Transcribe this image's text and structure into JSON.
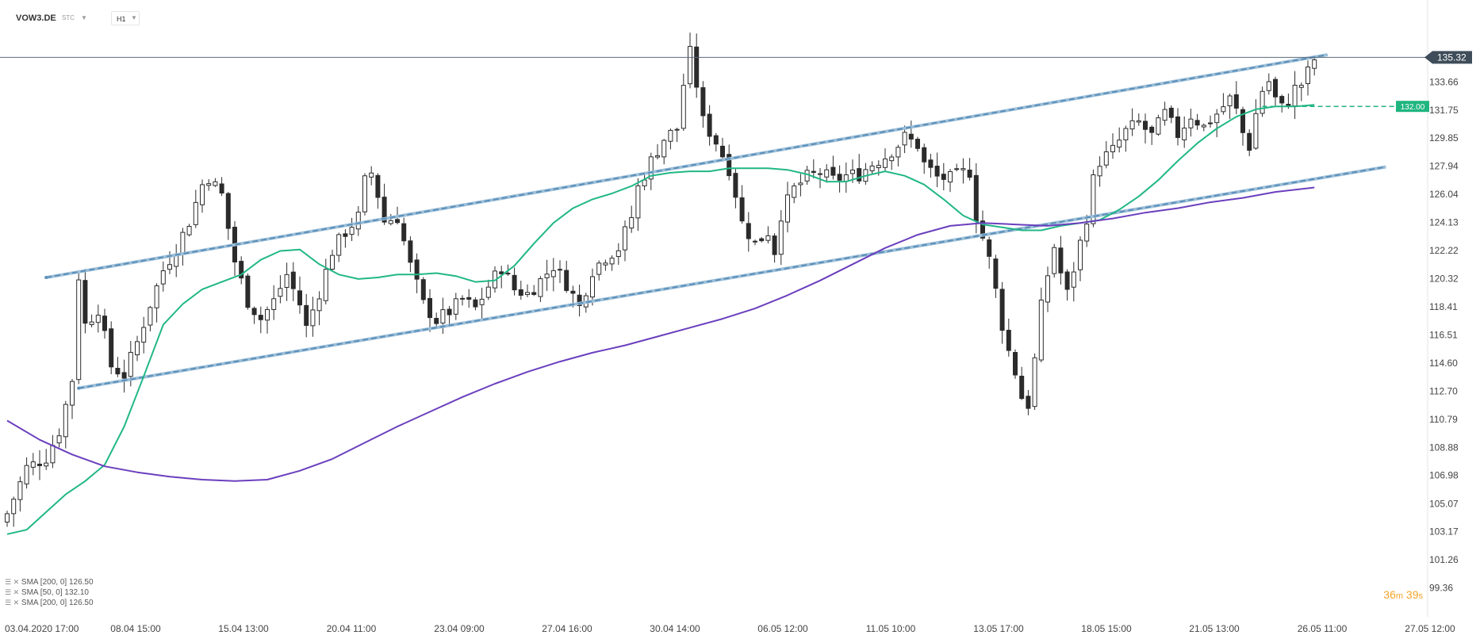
{
  "header": {
    "symbol": "VOW3.DE",
    "symbol_type": "STC",
    "symbol_caret": "▼",
    "timeframe": "H1",
    "timeframe_caret": "▼"
  },
  "colors": {
    "candle": "#2b2b2b",
    "sma50": "#21b787",
    "sma200": "#6b3fbe",
    "channel": "#5b8fb9",
    "price_line": "#5a6a7a",
    "order_line": "#1fb57f",
    "countdown": "#f4a52b"
  },
  "legend": [
    {
      "icons": "☰ ✕",
      "label": "SMA [200, 0] 126.50"
    },
    {
      "icons": "☰ ✕",
      "label": "SMA [50, 0] 132.10"
    },
    {
      "icons": "☰ ✕",
      "label": "SMA [200, 0] 126.50"
    }
  ],
  "countdown": {
    "minutes": "36",
    "m_unit": "m",
    "seconds": "39",
    "s_unit": "s"
  },
  "price_badge": "135.32",
  "order_badge": "132.00",
  "chart_data": {
    "type": "candlestick",
    "symbol": "VOW3.DE",
    "timeframe": "H1",
    "ylim": [
      97.4,
      137.6
    ],
    "y_ticks": [
      "133.66",
      "131.75",
      "129.85",
      "127.94",
      "126.04",
      "124.13",
      "122.22",
      "120.32",
      "118.41",
      "116.51",
      "114.60",
      "112.70",
      "110.79",
      "108.88",
      "106.98",
      "105.07",
      "103.17",
      "101.26",
      "99.36"
    ],
    "x_ticks": [
      "03.04.2020  17:00",
      "08.04  15:00",
      "15.04  13:00",
      "20.04  11:00",
      "23.04  09:00",
      "27.04  16:00",
      "30.04  14:00",
      "06.05  12:00",
      "11.05  10:00",
      "13.05  17:00",
      "18.05  15:00",
      "21.05  13:00",
      "26.05  11:00",
      "27.05  12:00"
    ],
    "last_price": 135.32,
    "order_level": 132.0,
    "close_path": [
      [
        0,
        104.4
      ],
      [
        3,
        107.5
      ],
      [
        6,
        108.2
      ],
      [
        8,
        110.0
      ],
      [
        10,
        113.5
      ],
      [
        11,
        120.5
      ],
      [
        12,
        117.2
      ],
      [
        14,
        118.3
      ],
      [
        16,
        114.4
      ],
      [
        18,
        113.8
      ],
      [
        20,
        116.0
      ],
      [
        22,
        118.6
      ],
      [
        24,
        120.9
      ],
      [
        26,
        122.4
      ],
      [
        28,
        124.2
      ],
      [
        30,
        126.7
      ],
      [
        31,
        127.2
      ],
      [
        33,
        126.0
      ],
      [
        35,
        121.5
      ],
      [
        37,
        118.8
      ],
      [
        39,
        117.6
      ],
      [
        41,
        118.8
      ],
      [
        43,
        120.6
      ],
      [
        45,
        118.6
      ],
      [
        46,
        117.0
      ],
      [
        48,
        119.4
      ],
      [
        50,
        122.2
      ],
      [
        52,
        123.5
      ],
      [
        54,
        124.5
      ],
      [
        55,
        126.9
      ],
      [
        56,
        127.5
      ],
      [
        57,
        126.0
      ],
      [
        58,
        124.2
      ],
      [
        60,
        124.5
      ],
      [
        62,
        121.2
      ],
      [
        64,
        118.6
      ],
      [
        66,
        117.5
      ],
      [
        68,
        118.1
      ],
      [
        70,
        118.9
      ],
      [
        72,
        118.3
      ],
      [
        74,
        119.8
      ],
      [
        76,
        121.1
      ],
      [
        78,
        119.6
      ],
      [
        80,
        119.3
      ],
      [
        82,
        120.2
      ],
      [
        84,
        121.2
      ],
      [
        86,
        120.0
      ],
      [
        88,
        118.4
      ],
      [
        90,
        120.9
      ],
      [
        92,
        121.8
      ],
      [
        94,
        122.4
      ],
      [
        96,
        124.5
      ],
      [
        97,
        126.5
      ],
      [
        99,
        128.3
      ],
      [
        101,
        129.8
      ],
      [
        103,
        130.5
      ],
      [
        104,
        133.5
      ],
      [
        105,
        135.6
      ],
      [
        106,
        133.5
      ],
      [
        107,
        131.0
      ],
      [
        109,
        129.6
      ],
      [
        111,
        127.8
      ],
      [
        112,
        126.1
      ],
      [
        113,
        124.1
      ],
      [
        115,
        122.7
      ],
      [
        117,
        123.5
      ],
      [
        118,
        122.2
      ],
      [
        119,
        124.7
      ],
      [
        121,
        126.4
      ],
      [
        123,
        127.2
      ],
      [
        125,
        127.5
      ],
      [
        127,
        127.0
      ],
      [
        129,
        127.3
      ],
      [
        131,
        127.4
      ],
      [
        133,
        128.1
      ],
      [
        135,
        128.6
      ],
      [
        137,
        129.4
      ],
      [
        138,
        129.9
      ],
      [
        140,
        129.4
      ],
      [
        141,
        128.1
      ],
      [
        143,
        127.2
      ],
      [
        145,
        127.1
      ],
      [
        147,
        127.5
      ],
      [
        148,
        127.6
      ],
      [
        149,
        124.6
      ],
      [
        150,
        123.1
      ],
      [
        151,
        121.6
      ],
      [
        152,
        119.5
      ],
      [
        153,
        117.2
      ],
      [
        154,
        115.4
      ],
      [
        155,
        114.0
      ],
      [
        156,
        112.3
      ],
      [
        157,
        111.8
      ],
      [
        158,
        114.8
      ],
      [
        159,
        118.4
      ],
      [
        160,
        120.6
      ],
      [
        161,
        122.5
      ],
      [
        162,
        120.7
      ],
      [
        163,
        119.3
      ],
      [
        164,
        121.0
      ],
      [
        166,
        124.5
      ],
      [
        167,
        127.0
      ],
      [
        168,
        128.3
      ],
      [
        170,
        129.0
      ],
      [
        172,
        130.3
      ],
      [
        174,
        130.9
      ],
      [
        176,
        130.0
      ],
      [
        178,
        131.5
      ],
      [
        180,
        130.1
      ],
      [
        182,
        131.4
      ],
      [
        184,
        130.6
      ],
      [
        186,
        131.5
      ],
      [
        188,
        132.5
      ],
      [
        189,
        131.7
      ],
      [
        190,
        130.2
      ],
      [
        191,
        129.3
      ],
      [
        192,
        131.5
      ],
      [
        193,
        133.1
      ],
      [
        194,
        133.7
      ],
      [
        195,
        132.5
      ],
      [
        196,
        131.9
      ],
      [
        197,
        132.4
      ],
      [
        198,
        133.2
      ],
      [
        199,
        133.5
      ],
      [
        200,
        134.3
      ],
      [
        201,
        135.2
      ]
    ],
    "series": [
      {
        "name": "SMA [50, 0]",
        "x": [
          0,
          3,
          6,
          9,
          12,
          15,
          18,
          21,
          24,
          27,
          30,
          33,
          36,
          39,
          42,
          45,
          48,
          51,
          54,
          57,
          60,
          63,
          66,
          69,
          72,
          75,
          78,
          81,
          84,
          87,
          90,
          93,
          96,
          99,
          102,
          105,
          108,
          111,
          114,
          117,
          120,
          123,
          126,
          129,
          132,
          135,
          138,
          141,
          144,
          147,
          150,
          153,
          156,
          159,
          162,
          165,
          168,
          171,
          174,
          177,
          180,
          183,
          186,
          189,
          192,
          195,
          198,
          201
        ],
        "y": [
          103.0,
          103.3,
          104.5,
          105.7,
          106.6,
          107.7,
          110.3,
          113.7,
          117.2,
          118.6,
          119.6,
          120.1,
          120.6,
          121.6,
          122.2,
          122.3,
          121.3,
          120.6,
          120.3,
          120.4,
          120.6,
          120.6,
          120.7,
          120.5,
          120.1,
          120.2,
          121.2,
          122.7,
          124.1,
          125.1,
          125.7,
          126.1,
          126.6,
          127.3,
          127.5,
          127.6,
          127.6,
          127.8,
          127.8,
          127.8,
          127.7,
          127.4,
          126.9,
          126.9,
          127.3,
          127.6,
          127.3,
          126.7,
          125.7,
          124.6,
          124.0,
          123.8,
          123.6,
          123.6,
          123.9,
          124.1,
          124.3,
          125.0,
          125.9,
          127.0,
          128.3,
          129.5,
          130.5,
          131.3,
          131.8,
          132.0,
          132.0,
          132.1
        ]
      },
      {
        "name": "SMA [200, 0]",
        "x": [
          0,
          5,
          10,
          15,
          20,
          25,
          30,
          35,
          40,
          45,
          50,
          55,
          60,
          65,
          70,
          75,
          80,
          85,
          90,
          95,
          100,
          105,
          110,
          115,
          120,
          125,
          130,
          135,
          140,
          145,
          150,
          155,
          160,
          165,
          170,
          175,
          180,
          185,
          190,
          195,
          201
        ],
        "y": [
          110.7,
          109.4,
          108.4,
          107.6,
          107.2,
          106.9,
          106.7,
          106.6,
          106.7,
          107.3,
          108.1,
          109.2,
          110.3,
          111.3,
          112.3,
          113.2,
          114.0,
          114.7,
          115.3,
          115.8,
          116.4,
          117.0,
          117.6,
          118.3,
          119.2,
          120.2,
          121.3,
          122.4,
          123.3,
          123.9,
          124.1,
          124.0,
          123.9,
          124.1,
          124.4,
          124.8,
          125.1,
          125.5,
          125.8,
          126.2,
          126.5
        ]
      }
    ],
    "channel_lines": [
      {
        "name": "channel-upper",
        "from": [
          6,
          120.4
        ],
        "to": [
          203,
          135.5
        ]
      },
      {
        "name": "channel-lower",
        "from": [
          11,
          112.9
        ],
        "to": [
          212,
          127.9
        ]
      }
    ]
  }
}
